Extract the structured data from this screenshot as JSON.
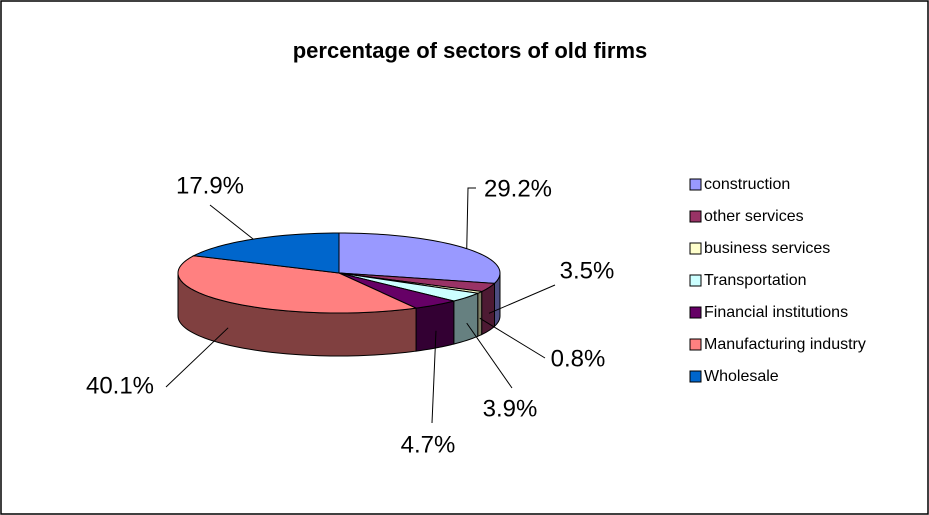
{
  "chart_data": {
    "type": "pie",
    "title": "percentage of sectors of old firms",
    "categories": [
      "construction",
      "other services",
      "business services",
      "Transportation",
      "Financial institutions",
      "Manufacturing industry",
      "Wholesale"
    ],
    "values": [
      29.2,
      3.5,
      0.8,
      3.9,
      4.7,
      40.1,
      17.9
    ],
    "value_labels": [
      "29.2%",
      "3.5%",
      "0.8%",
      "3.9%",
      "4.7%",
      "40.1%",
      "17.9%"
    ],
    "colors": [
      "#9999ff",
      "#993366",
      "#ffffcc",
      "#ccffff",
      "#660066",
      "#ff8080",
      "#0066cc"
    ],
    "legend": "right"
  }
}
